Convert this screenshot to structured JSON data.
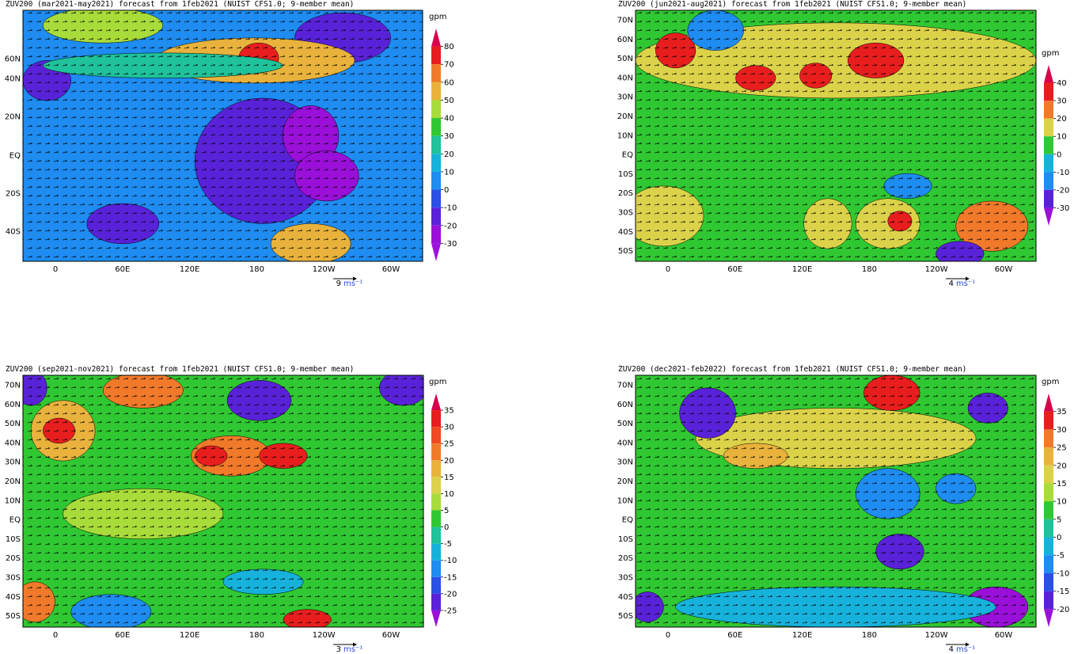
{
  "panels": [
    {
      "title": "ZUV200 (mar2021-may2021) forecast from 1feb2021 (NUIST CFS1.0; 9-member mean)",
      "lat_labels": [
        "60N",
        "40N",
        "20N",
        "EQ",
        "20S",
        "40S"
      ],
      "lon_labels": [
        "0",
        "60E",
        "120E",
        "180",
        "120W",
        "60W"
      ],
      "unit": "gpm",
      "levels": [
        80,
        70,
        60,
        50,
        40,
        30,
        20,
        10,
        0,
        -10,
        -20,
        -30
      ],
      "colors": [
        "#d8004a",
        "#e81e1e",
        "#f07a2a",
        "#e8b23c",
        "#a8dc3a",
        "#30c832",
        "#1fc29a",
        "#16b2dc",
        "#1e8cf0",
        "#2a50e6",
        "#5a22d8",
        "#9a10d8",
        "#a010dc"
      ],
      "ref_value": 9,
      "ref_unit": "ms⁻¹"
    },
    {
      "title": "ZUV200 (jun2021-aug2021) forecast from 1feb2021 (NUIST CFS1.0; 9-member mean)",
      "lat_labels": [
        "70N",
        "60N",
        "50N",
        "40N",
        "30N",
        "20N",
        "10N",
        "EQ",
        "10S",
        "20S",
        "30S",
        "40S",
        "50S"
      ],
      "lon_labels": [
        "0",
        "60E",
        "120E",
        "180",
        "120W",
        "60W"
      ],
      "unit": "gpm",
      "levels": [
        40,
        30,
        20,
        10,
        0,
        -10,
        -20,
        -30
      ],
      "colors": [
        "#d8004a",
        "#e81e1e",
        "#f07a2a",
        "#dcd24a",
        "#30c832",
        "#16b2dc",
        "#1e8cf0",
        "#5a22d8",
        "#9a10d8"
      ],
      "ref_value": 4,
      "ref_unit": "ms⁻¹"
    },
    {
      "title": "ZUV200 (sep2021-nov2021) forecast from 1feb2021 (NUIST CFS1.0; 9-member mean)",
      "lat_labels": [
        "70N",
        "60N",
        "50N",
        "40N",
        "30N",
        "20N",
        "10N",
        "EQ",
        "10S",
        "20S",
        "30S",
        "40S",
        "50S"
      ],
      "lon_labels": [
        "0",
        "60E",
        "120E",
        "180",
        "120W",
        "60W"
      ],
      "unit": "gpm",
      "levels": [
        35,
        30,
        25,
        20,
        15,
        10,
        5,
        0,
        -5,
        -10,
        -15,
        -20,
        -25
      ],
      "colors": [
        "#d8004a",
        "#e81e1e",
        "#f04a22",
        "#f07a2a",
        "#e8b23c",
        "#dcd24a",
        "#a8dc3a",
        "#30c832",
        "#1fc29a",
        "#16b2dc",
        "#1e8cf0",
        "#2a50e6",
        "#5a22d8",
        "#9a10d8"
      ],
      "ref_value": 3,
      "ref_unit": "ms⁻¹"
    },
    {
      "title": "ZUV200 (dec2021-feb2022) forecast from 1feb2021 (NUIST CFS1.0; 9-member mean)",
      "lat_labels": [
        "70N",
        "60N",
        "50N",
        "40N",
        "30N",
        "20N",
        "10N",
        "EQ",
        "10S",
        "20S",
        "30S",
        "40S",
        "50S"
      ],
      "lon_labels": [
        "0",
        "60E",
        "120E",
        "180",
        "120W",
        "60W"
      ],
      "unit": "gpm",
      "levels": [
        35,
        30,
        25,
        20,
        15,
        10,
        5,
        0,
        -5,
        -10,
        -15,
        -20
      ],
      "colors": [
        "#d8004a",
        "#e81e1e",
        "#f07a2a",
        "#e8b23c",
        "#dcd24a",
        "#a8dc3a",
        "#30c832",
        "#1fc29a",
        "#16b2dc",
        "#1e8cf0",
        "#2a50e6",
        "#5a22d8",
        "#9a10d8"
      ],
      "ref_value": 4,
      "ref_unit": "ms⁻¹"
    }
  ]
}
